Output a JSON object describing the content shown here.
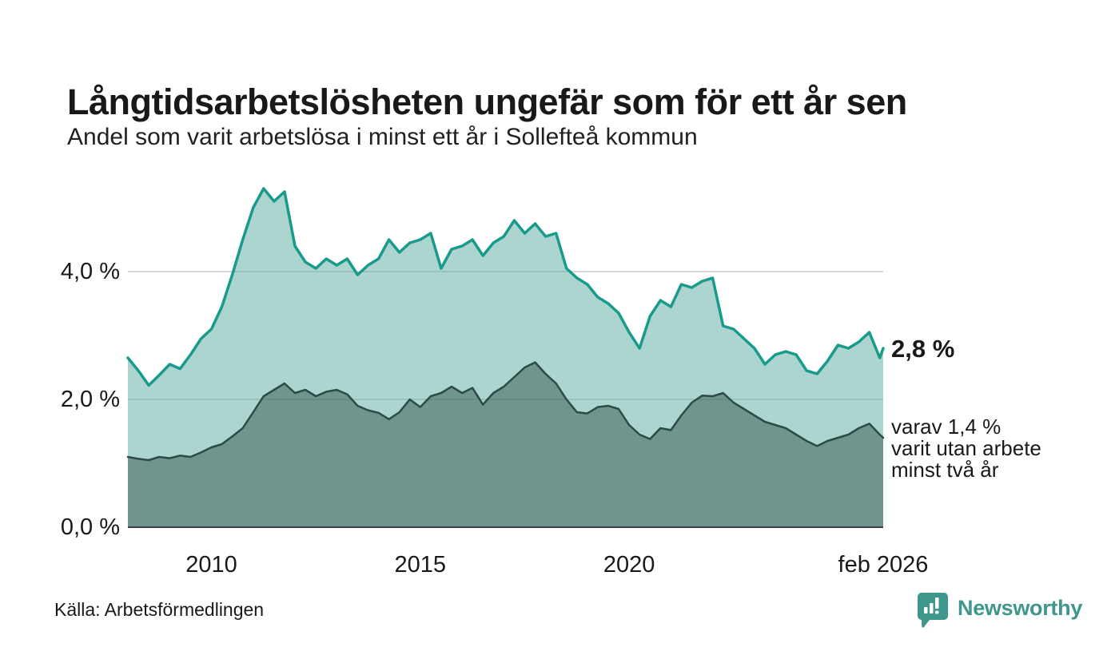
{
  "header": {
    "title": "Långtidsarbetslösheten ungefär som för ett år sen",
    "subtitle": "Andel som varit arbetslösa i minst ett år i Sollefteå kommun"
  },
  "chart_data": {
    "type": "area",
    "title": "Långtidsarbetslösheten ungefär som för ett år sen",
    "subtitle": "Andel som varit arbetslösa i minst ett år i Sollefteå kommun",
    "unit": "%",
    "grid": "horizontal",
    "x_axis": {
      "range": [
        2008.0,
        2026.083
      ],
      "ticks": [
        {
          "value": 2010,
          "label": "2010"
        },
        {
          "value": 2015,
          "label": "2015"
        },
        {
          "value": 2020,
          "label": "2020"
        },
        {
          "value": 2026.083,
          "label": "feb 2026"
        }
      ]
    },
    "y_axis": {
      "range": [
        0,
        5.375
      ],
      "ticks": [
        {
          "value": 0,
          "label": "0,0 %"
        },
        {
          "value": 2,
          "label": "2,0 %"
        },
        {
          "value": 4,
          "label": "4,0 %"
        }
      ]
    },
    "x": [
      2008.0,
      2008.25,
      2008.5,
      2008.75,
      2009.0,
      2009.25,
      2009.5,
      2009.75,
      2010.0,
      2010.25,
      2010.5,
      2010.75,
      2011.0,
      2011.25,
      2011.5,
      2011.75,
      2012.0,
      2012.25,
      2012.5,
      2012.75,
      2013.0,
      2013.25,
      2013.5,
      2013.75,
      2014.0,
      2014.25,
      2014.5,
      2014.75,
      2015.0,
      2015.25,
      2015.5,
      2015.75,
      2016.0,
      2016.25,
      2016.5,
      2016.75,
      2017.0,
      2017.25,
      2017.5,
      2017.75,
      2018.0,
      2018.25,
      2018.5,
      2018.75,
      2019.0,
      2019.25,
      2019.5,
      2019.75,
      2020.0,
      2020.25,
      2020.5,
      2020.75,
      2021.0,
      2021.25,
      2021.5,
      2021.75,
      2022.0,
      2022.25,
      2022.5,
      2022.75,
      2023.0,
      2023.25,
      2023.5,
      2023.75,
      2024.0,
      2024.25,
      2024.5,
      2024.75,
      2025.0,
      2025.25,
      2025.5,
      2025.75,
      2026.0,
      2026.083
    ],
    "series": [
      {
        "name": "Andel arbetslösa minst ett år",
        "latest_value": 2.8,
        "line_color": "#189b8b",
        "fill_color": "rgba(87,171,157,0.5)",
        "line_width": 3.5,
        "values": [
          2.65,
          2.45,
          2.22,
          2.38,
          2.55,
          2.48,
          2.7,
          2.95,
          3.1,
          3.45,
          3.95,
          4.5,
          5.0,
          5.3,
          5.1,
          5.25,
          4.4,
          4.15,
          4.05,
          4.2,
          4.1,
          4.2,
          3.95,
          4.1,
          4.2,
          4.5,
          4.3,
          4.45,
          4.5,
          4.6,
          4.05,
          4.35,
          4.4,
          4.5,
          4.25,
          4.45,
          4.55,
          4.8,
          4.6,
          4.75,
          4.55,
          4.6,
          4.05,
          3.9,
          3.8,
          3.6,
          3.5,
          3.35,
          3.05,
          2.8,
          3.3,
          3.55,
          3.45,
          3.8,
          3.75,
          3.85,
          3.9,
          3.15,
          3.1,
          2.95,
          2.8,
          2.55,
          2.7,
          2.75,
          2.7,
          2.45,
          2.4,
          2.6,
          2.85,
          2.8,
          2.9,
          3.05,
          2.65,
          2.8
        ]
      },
      {
        "name": "Andel arbetslösa minst två år",
        "latest_value": 1.4,
        "line_color": "#2c4b46",
        "fill_color": "rgba(51,85,78,0.5)",
        "line_width": 2.5,
        "values": [
          1.1,
          1.07,
          1.05,
          1.1,
          1.08,
          1.12,
          1.1,
          1.17,
          1.25,
          1.3,
          1.42,
          1.55,
          1.8,
          2.05,
          2.15,
          2.25,
          2.1,
          2.15,
          2.05,
          2.12,
          2.15,
          2.08,
          1.9,
          1.83,
          1.79,
          1.69,
          1.8,
          2.0,
          1.88,
          2.05,
          2.1,
          2.2,
          2.1,
          2.18,
          1.92,
          2.1,
          2.2,
          2.35,
          2.5,
          2.58,
          2.4,
          2.25,
          2.0,
          1.8,
          1.78,
          1.88,
          1.9,
          1.85,
          1.6,
          1.45,
          1.38,
          1.55,
          1.52,
          1.75,
          1.95,
          2.06,
          2.05,
          2.1,
          1.95,
          1.85,
          1.75,
          1.65,
          1.6,
          1.55,
          1.45,
          1.35,
          1.27,
          1.35,
          1.4,
          1.45,
          1.55,
          1.62,
          1.45,
          1.4
        ]
      }
    ],
    "annotations": {
      "latest_total": "2,8 %",
      "secondary_lines": [
        "varav 1,4 %",
        "varit utan arbete",
        "minst två år"
      ]
    },
    "colors": {
      "gridline": "#cccccc",
      "baseline": "#404040",
      "accent_teal": "#189b8b",
      "brand_teal": "#3e968c"
    }
  },
  "footer": {
    "source": "Källa: Arbetsförmedlingen",
    "brand": "Newsworthy"
  }
}
